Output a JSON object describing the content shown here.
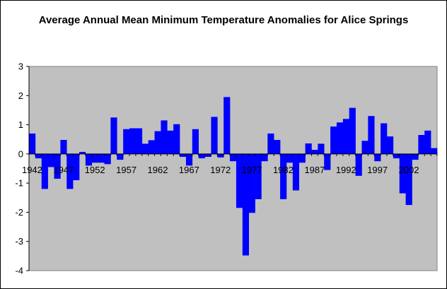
{
  "chart_data": {
    "type": "bar",
    "title": "Average Annual Mean Minimum Temperature Anomalies for Alice Springs",
    "xlabel": "",
    "ylabel": "",
    "ylim": [
      -4,
      3
    ],
    "yticks": [
      3,
      2,
      1,
      0,
      -1,
      -2,
      -3,
      -4
    ],
    "x_tick_labels": [
      "1942",
      "1947",
      "1952",
      "1957",
      "1962",
      "1967",
      "1972",
      "1977",
      "1982",
      "1987",
      "1992",
      "1997",
      "2002"
    ],
    "categories": [
      1942,
      1943,
      1944,
      1945,
      1946,
      1947,
      1948,
      1949,
      1950,
      1951,
      1952,
      1953,
      1954,
      1955,
      1956,
      1957,
      1958,
      1959,
      1960,
      1961,
      1962,
      1963,
      1964,
      1965,
      1966,
      1967,
      1968,
      1969,
      1970,
      1971,
      1972,
      1973,
      1974,
      1975,
      1976,
      1977,
      1978,
      1979,
      1980,
      1981,
      1982,
      1983,
      1984,
      1985,
      1986,
      1987,
      1988,
      1989,
      1990,
      1991,
      1992,
      1993,
      1994,
      1995,
      1996,
      1997,
      1998,
      1999,
      2000,
      2001,
      2002,
      2003,
      2004,
      2005,
      2006
    ],
    "values": [
      0.7,
      -0.15,
      -1.2,
      -0.45,
      -0.85,
      0.48,
      -1.2,
      -0.9,
      0.07,
      -0.4,
      -0.3,
      -0.3,
      -0.35,
      1.25,
      -0.2,
      0.85,
      0.88,
      0.88,
      0.35,
      0.47,
      0.78,
      1.15,
      0.8,
      1.02,
      -0.1,
      -0.4,
      0.85,
      -0.15,
      -0.1,
      1.27,
      -0.12,
      1.95,
      -0.25,
      -1.85,
      -3.48,
      -2.02,
      -1.55,
      -0.25,
      0.7,
      0.48,
      -1.55,
      -0.3,
      -1.25,
      -0.3,
      0.36,
      0.14,
      0.35,
      -0.55,
      0.94,
      1.08,
      1.2,
      1.58,
      -0.75,
      0.45,
      1.3,
      -0.25,
      1.05,
      0.6,
      -0.15,
      -1.35,
      -1.75,
      -0.2,
      0.65,
      0.8,
      0.2
    ],
    "grid": false,
    "legend": "none",
    "plot_area_color": "#c0c0c0",
    "bar_color": "#0000ff"
  }
}
